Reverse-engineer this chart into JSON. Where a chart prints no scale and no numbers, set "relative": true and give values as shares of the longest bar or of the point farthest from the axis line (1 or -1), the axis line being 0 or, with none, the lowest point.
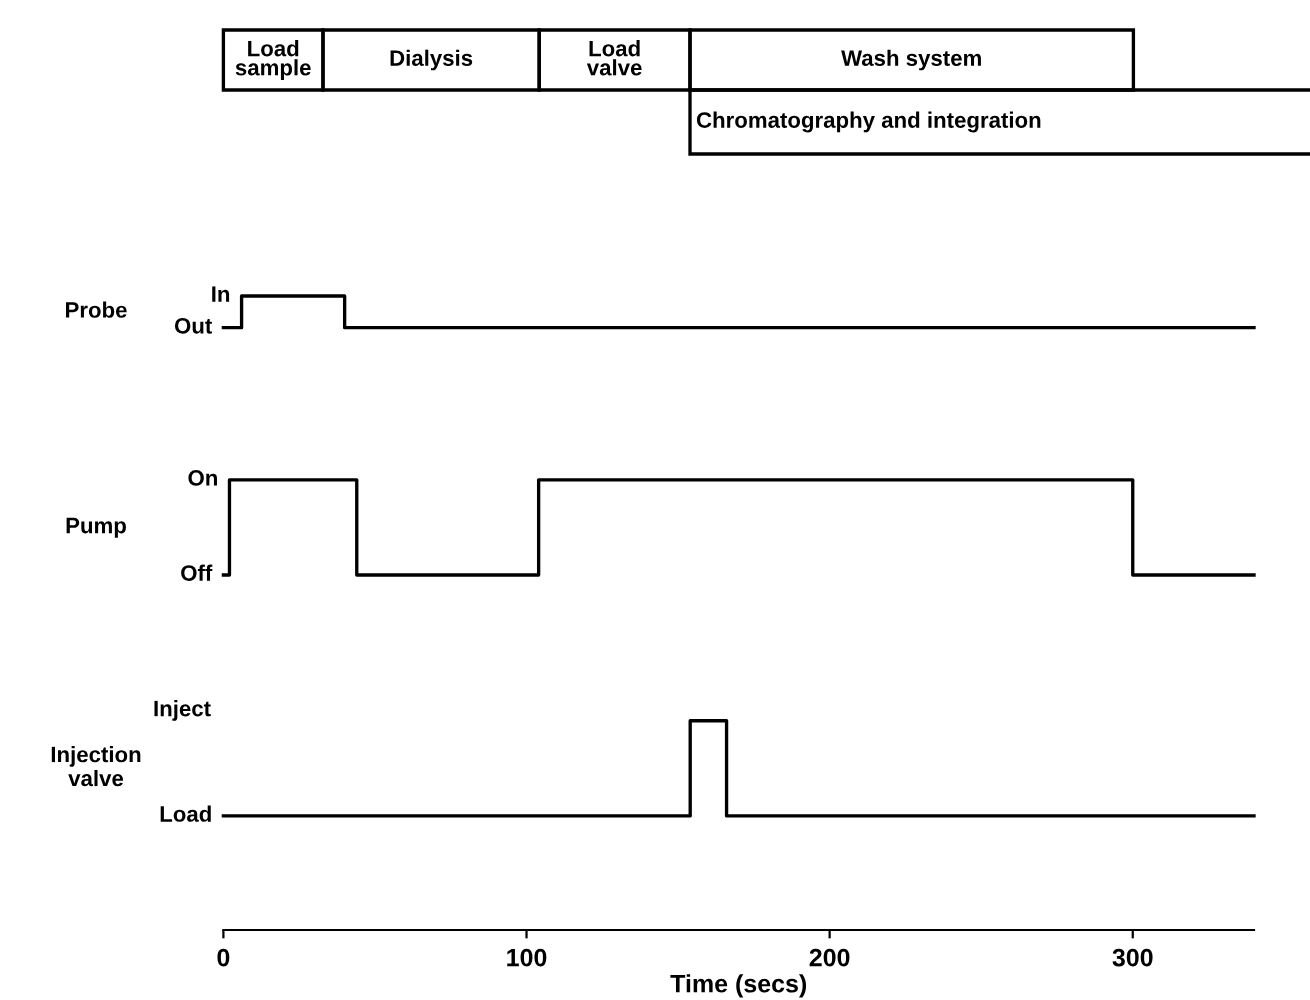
{
  "chart_data": [
    {
      "type": "other",
      "annotations": [
        "Load\nsample",
        "Dialysis",
        "Load\nvalve",
        "Wash system",
        "Chromatography and integration"
      ]
    },
    {
      "type": "step",
      "relative": true,
      "xlabel": "Time (secs)",
      "xlim": [
        0,
        340
      ],
      "xticks": [
        0,
        100,
        200,
        300
      ],
      "marker": "none",
      "line_style": "solid",
      "series": [
        {
          "color": "#000000",
          "x": [
            0,
            6,
            40,
            340
          ],
          "values": [
            0.95,
            1,
            0.95,
            0.95
          ]
        },
        {
          "color": "#000000",
          "x": [
            0,
            2,
            44,
            104,
            300,
            340
          ],
          "values": [
            0.56,
            0.71,
            0.56,
            0.71,
            0.56,
            0.56
          ]
        },
        {
          "color": "#000000",
          "x": [
            0,
            154,
            166,
            340
          ],
          "values": [
            0.18,
            0.33,
            0.18,
            0.18
          ]
        }
      ],
      "annotations": [
        {
          "text": "In",
          "x": 6,
          "y": 1
        },
        {
          "text": "Out",
          "x": 0,
          "y": 0.95
        },
        {
          "text": "On",
          "x": 2,
          "y": 0.71
        },
        {
          "text": "Off",
          "x": 0,
          "y": 0.56
        },
        "Probe",
        "Pump",
        "Injection\nvalve",
        "Inject",
        {
          "text": "Load",
          "x": 0,
          "y": 0.18
        }
      ]
    }
  ]
}
